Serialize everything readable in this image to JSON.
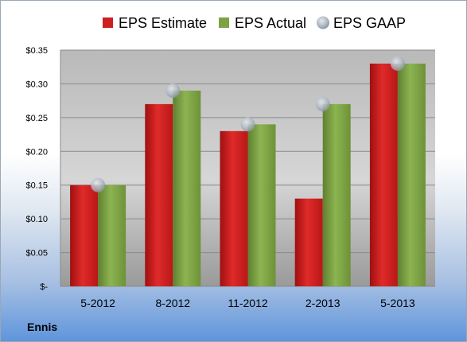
{
  "company": "Ennis",
  "colors": {
    "estimate": "#cc1f1f",
    "actual": "#7ea245",
    "gaap": "#b9c2cc"
  },
  "chart_data": {
    "type": "bar",
    "categories": [
      "5-2012",
      "8-2012",
      "11-2012",
      "2-2013",
      "5-2013"
    ],
    "series": [
      {
        "name": "EPS Estimate",
        "type": "bar",
        "values": [
          0.15,
          0.27,
          0.23,
          0.13,
          0.33
        ]
      },
      {
        "name": "EPS Actual",
        "type": "bar",
        "values": [
          0.15,
          0.29,
          0.24,
          0.27,
          0.33
        ]
      },
      {
        "name": "EPS GAAP",
        "type": "scatter",
        "values": [
          0.15,
          0.29,
          0.24,
          0.27,
          0.33
        ]
      }
    ],
    "y_ticks": [
      {
        "value": 0,
        "label": "$-"
      },
      {
        "value": 0.05,
        "label": "$0.05"
      },
      {
        "value": 0.1,
        "label": "$0.10"
      },
      {
        "value": 0.15,
        "label": "$0.15"
      },
      {
        "value": 0.2,
        "label": "$0.20"
      },
      {
        "value": 0.25,
        "label": "$0.25"
      },
      {
        "value": 0.3,
        "label": "$0.30"
      },
      {
        "value": 0.35,
        "label": "$0.35"
      }
    ],
    "ylim": [
      0,
      0.35
    ],
    "grid": true,
    "legend_position": "top",
    "title": "",
    "xlabel": "",
    "ylabel": ""
  }
}
